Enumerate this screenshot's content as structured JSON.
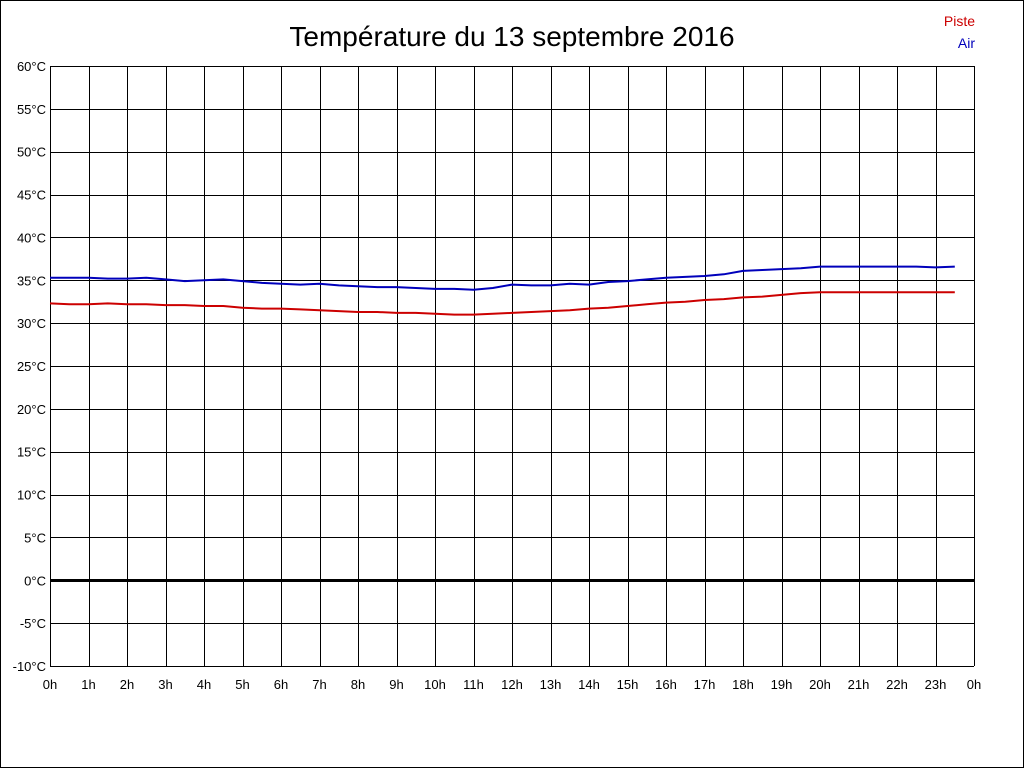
{
  "chart_data": {
    "type": "line",
    "title": "Température du 13 septembre 2016",
    "xlabel": "",
    "ylabel": "",
    "x_ticks": [
      "0h",
      "1h",
      "2h",
      "3h",
      "4h",
      "5h",
      "6h",
      "7h",
      "8h",
      "9h",
      "10h",
      "11h",
      "12h",
      "13h",
      "14h",
      "15h",
      "16h",
      "17h",
      "18h",
      "19h",
      "20h",
      "21h",
      "22h",
      "23h",
      "0h"
    ],
    "y_ticks": [
      "-10°C",
      "-5°C",
      "0°C",
      "5°C",
      "10°C",
      "15°C",
      "20°C",
      "25°C",
      "30°C",
      "35°C",
      "40°C",
      "45°C",
      "50°C",
      "55°C",
      "60°C"
    ],
    "xlim": [
      0,
      24
    ],
    "ylim": [
      -10,
      60
    ],
    "grid": true,
    "legend_position": "top-right",
    "series": [
      {
        "name": "Piste",
        "color": "#cc0000",
        "x": [
          0,
          0.5,
          1,
          1.5,
          2,
          2.5,
          3,
          3.5,
          4,
          4.5,
          5,
          5.5,
          6,
          6.5,
          7,
          7.5,
          8,
          8.5,
          9,
          9.5,
          10,
          10.5,
          11,
          11.5,
          12,
          12.5,
          13,
          13.5,
          14,
          14.5,
          15,
          15.5,
          16,
          16.5,
          17,
          17.5,
          18,
          18.5,
          19,
          19.5,
          20,
          20.5,
          21,
          21.5,
          22,
          22.5,
          23,
          23.5
        ],
        "values": [
          32.3,
          32.2,
          32.2,
          32.3,
          32.2,
          32.2,
          32.1,
          32.1,
          32.0,
          32.0,
          31.8,
          31.7,
          31.7,
          31.6,
          31.5,
          31.4,
          31.3,
          31.3,
          31.2,
          31.2,
          31.1,
          31.0,
          31.0,
          31.1,
          31.2,
          31.3,
          31.4,
          31.5,
          31.7,
          31.8,
          32.0,
          32.2,
          32.4,
          32.5,
          32.7,
          32.8,
          33.0,
          33.1,
          33.3,
          33.5,
          33.6,
          33.6,
          33.6,
          33.6,
          33.6,
          33.6,
          33.6,
          33.6
        ]
      },
      {
        "name": "Air",
        "color": "#0000bb",
        "x": [
          0,
          0.5,
          1,
          1.5,
          2,
          2.5,
          3,
          3.5,
          4,
          4.5,
          5,
          5.5,
          6,
          6.5,
          7,
          7.5,
          8,
          8.5,
          9,
          9.5,
          10,
          10.5,
          11,
          11.5,
          12,
          12.5,
          13,
          13.5,
          14,
          14.5,
          15,
          15.5,
          16,
          16.5,
          17,
          17.5,
          18,
          18.5,
          19,
          19.5,
          20,
          20.5,
          21,
          21.5,
          22,
          22.5,
          23,
          23.5
        ],
        "values": [
          35.3,
          35.3,
          35.3,
          35.2,
          35.2,
          35.3,
          35.1,
          34.9,
          35.0,
          35.1,
          34.9,
          34.7,
          34.6,
          34.5,
          34.6,
          34.4,
          34.3,
          34.2,
          34.2,
          34.1,
          34.0,
          34.0,
          33.9,
          34.1,
          34.5,
          34.4,
          34.4,
          34.6,
          34.5,
          34.8,
          34.9,
          35.1,
          35.3,
          35.4,
          35.5,
          35.7,
          36.1,
          36.2,
          36.3,
          36.4,
          36.6,
          36.6,
          36.6,
          36.6,
          36.6,
          36.6,
          36.5,
          36.6
        ]
      }
    ]
  }
}
